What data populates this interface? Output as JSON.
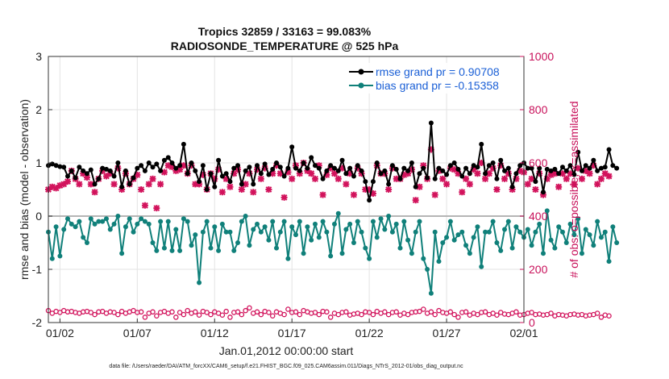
{
  "chart_data": {
    "type": "line",
    "title": "Tropics 32859 / 33163 = 99.083%",
    "subtitle": "RADIOSONDE_TEMPERATURE @ 525 hPa",
    "xlabel": "Jan.01,2012 00:00:00 start",
    "ylabel_left": "rmse and bias (model - observation)",
    "ylabel_right": "# of obs: o=possible; ×=assimilated",
    "footer": "data file: /Users/raeder/DAI/ATM_forcXX/CAM6_setup/f.e21.FHIST_BGC.f09_025.CAM6assim.011/Diags_NTrS_2012-01/obs_diag_output.nc",
    "ylim_left": [
      -2,
      3
    ],
    "ylim_right": [
      0,
      1000
    ],
    "xlim_days": [
      0.25,
      31.0
    ],
    "left_ticks": [
      "-2",
      "-1",
      "0",
      "1",
      "2",
      "3"
    ],
    "right_ticks": [
      "0",
      "200",
      "400",
      "600",
      "800",
      "1000"
    ],
    "x_ticks": [
      {
        "day": 1,
        "label": "01/02"
      },
      {
        "day": 6,
        "label": "01/07"
      },
      {
        "day": 11,
        "label": "01/12"
      },
      {
        "day": 16,
        "label": "01/17"
      },
      {
        "day": 21,
        "label": "01/22"
      },
      {
        "day": 26,
        "label": "01/27"
      },
      {
        "day": 31,
        "label": "02/01"
      }
    ],
    "step_days": 0.25,
    "series": [
      {
        "name": "rmse grand pr = 0.90708",
        "color": "#000000",
        "axis": "left",
        "values": [
          0.95,
          0.98,
          0.95,
          0.93,
          0.92,
          0.75,
          0.85,
          0.72,
          0.92,
          0.85,
          0.8,
          0.87,
          0.6,
          0.7,
          0.9,
          0.88,
          0.85,
          0.75,
          1.0,
          0.55,
          0.85,
          0.6,
          0.72,
          0.9,
          0.95,
          0.85,
          1.0,
          0.92,
          0.98,
          0.85,
          1.05,
          1.1,
          1.0,
          0.9,
          0.95,
          1.35,
          0.8,
          1.0,
          0.85,
          0.65,
          0.95,
          0.5,
          0.8,
          0.55,
          1.05,
          0.75,
          0.8,
          0.65,
          0.9,
          0.95,
          0.6,
          0.85,
          0.92,
          0.6,
          0.95,
          0.8,
          0.98,
          0.78,
          0.88,
          1.0,
          0.92,
          0.75,
          0.9,
          1.3,
          0.9,
          0.85,
          1.0,
          0.9,
          1.1,
          0.95,
          0.9,
          0.7,
          0.85,
          0.95,
          0.9,
          0.85,
          1.05,
          0.8,
          0.9,
          0.75,
          0.95,
          0.85,
          0.65,
          0.3,
          0.65,
          1.0,
          0.8,
          0.85,
          0.6,
          0.95,
          0.88,
          0.7,
          0.9,
          0.85,
          1.0,
          0.55,
          0.8,
          0.9,
          0.72,
          1.75,
          0.7,
          0.9,
          0.85,
          0.78,
          0.95,
          1.0,
          0.88,
          0.75,
          0.9,
          0.8,
          0.95,
          0.92,
          1.35,
          0.8,
          0.95,
          1.0,
          0.7,
          1.05,
          0.85,
          0.9,
          0.55,
          0.8,
          0.95,
          1.0,
          0.9,
          0.9,
          0.65,
          0.9,
          0.45,
          0.88,
          0.85,
          0.88,
          0.8,
          0.92,
          0.85,
          0.95,
          0.78,
          1.2,
          0.85,
          0.95,
          0.9,
          1.05,
          0.85,
          0.9,
          0.92,
          1.25,
          0.95,
          0.9
        ]
      },
      {
        "name": "bias grand pr = -0.15358",
        "color": "#10807a",
        "axis": "left",
        "values": [
          -0.3,
          -0.8,
          -0.2,
          -0.75,
          -0.25,
          -0.05,
          -0.15,
          -0.2,
          -0.1,
          -0.4,
          -0.5,
          -0.05,
          -0.15,
          -0.1,
          -0.1,
          -0.05,
          -0.25,
          -0.15,
          0.0,
          -0.7,
          -0.2,
          -0.05,
          -0.3,
          -0.15,
          -0.05,
          -0.1,
          -0.15,
          -0.5,
          -0.65,
          -0.1,
          -0.6,
          -0.1,
          -0.65,
          -0.25,
          -0.65,
          -0.05,
          -0.1,
          -0.55,
          -0.35,
          -1.25,
          -0.3,
          -0.1,
          -0.6,
          -0.2,
          -0.65,
          -0.15,
          -0.3,
          -0.3,
          -0.65,
          -0.5,
          -0.1,
          0.0,
          -0.55,
          -0.25,
          -0.15,
          -0.3,
          -0.2,
          -0.45,
          -0.1,
          -0.6,
          -0.3,
          -0.1,
          -0.8,
          -0.2,
          -0.35,
          -0.1,
          -0.7,
          -0.2,
          -0.45,
          -0.15,
          -0.4,
          -0.1,
          -0.3,
          -0.75,
          -0.15,
          0.05,
          -0.7,
          -0.25,
          -0.15,
          -0.5,
          -0.1,
          -0.3,
          -0.6,
          -0.8,
          -0.1,
          -0.4,
          -0.05,
          -0.25,
          0.0,
          -0.3,
          -0.15,
          -0.6,
          -0.1,
          -0.45,
          -0.7,
          -0.3,
          -0.1,
          -0.8,
          -1.0,
          -1.45,
          -0.3,
          -0.85,
          -0.5,
          -0.4,
          -0.1,
          -0.45,
          -0.35,
          -0.3,
          -0.55,
          -0.7,
          -0.4,
          -0.2,
          -0.95,
          -0.3,
          -0.3,
          -0.1,
          -0.5,
          -0.65,
          -0.25,
          -0.1,
          -0.6,
          -0.2,
          -0.3,
          -0.4,
          -0.25,
          -0.55,
          -0.3,
          -0.15,
          -0.7,
          0.1,
          -0.45,
          -0.6,
          -0.2,
          -0.3,
          -0.5,
          -0.15,
          -0.35,
          -0.05,
          -0.7,
          -0.25,
          -0.35,
          -0.55,
          -0.1,
          -0.4,
          -0.3,
          -0.85,
          -0.2,
          -0.5
        ]
      },
      {
        "name": "possible",
        "color": "#d2135c",
        "axis": "right",
        "marker": "o",
        "values": [
          45,
          35,
          42,
          38,
          45,
          40,
          42,
          38,
          35,
          40,
          42,
          38,
          30,
          40,
          42,
          35,
          40,
          38,
          30,
          42,
          35,
          40,
          45,
          38,
          40,
          20,
          35,
          40,
          25,
          38,
          42,
          35,
          40,
          20,
          38,
          30,
          45,
          35,
          40,
          28,
          42,
          38,
          30,
          40,
          35,
          28,
          42,
          20,
          38,
          40,
          30,
          45,
          55,
          35,
          40,
          30,
          42,
          38,
          25,
          40,
          35,
          30,
          50,
          38,
          40,
          30,
          45,
          40,
          35,
          38,
          30,
          42,
          40,
          20,
          35,
          30,
          38,
          40,
          28,
          32,
          35,
          30,
          40,
          38,
          30,
          42,
          35,
          40,
          30,
          38,
          40,
          28,
          35,
          30,
          38,
          40,
          42,
          50,
          35,
          40,
          30,
          45,
          38,
          35,
          40,
          30,
          20,
          38,
          40,
          28,
          35,
          30,
          38,
          40,
          30,
          35,
          28,
          38,
          32,
          30,
          35,
          40,
          28,
          30,
          35,
          38,
          30,
          32,
          28,
          30,
          35,
          25,
          30,
          28,
          25,
          30,
          32,
          28,
          30,
          25,
          28,
          30,
          35,
          20,
          28,
          25
        ]
      },
      {
        "name": "assimilated",
        "color": "#d2135c",
        "axis": "right",
        "marker": "x",
        "values": [
          500,
          510,
          505,
          515,
          520,
          530,
          570,
          540,
          520,
          560,
          545,
          520,
          490,
          540,
          570,
          550,
          560,
          520,
          580,
          500,
          560,
          520,
          540,
          555,
          500,
          440,
          520,
          540,
          430,
          520,
          565,
          590,
          585,
          570,
          575,
          590,
          560,
          590,
          520,
          520,
          555,
          500,
          560,
          540,
          575,
          490,
          540,
          510,
          560,
          575,
          500,
          520,
          560,
          490,
          575,
          540,
          580,
          500,
          560,
          590,
          560,
          470,
          565,
          540,
          590,
          560,
          600,
          570,
          560,
          540,
          590,
          480,
          555,
          580,
          560,
          540,
          580,
          520,
          560,
          480,
          580,
          560,
          500,
          500,
          485,
          590,
          560,
          560,
          500,
          580,
          540,
          540,
          555,
          560,
          575,
          460,
          510,
          590,
          540,
          650,
          480,
          570,
          540,
          520,
          580,
          575,
          560,
          490,
          540,
          520,
          575,
          560,
          600,
          540,
          560,
          580,
          500,
          590,
          540,
          560,
          500,
          540,
          570,
          565,
          520,
          540,
          500,
          560,
          480,
          540,
          555,
          560,
          510,
          560,
          540,
          560,
          520,
          580,
          540,
          570,
          560,
          590,
          520,
          540,
          560,
          550
        ]
      }
    ]
  }
}
